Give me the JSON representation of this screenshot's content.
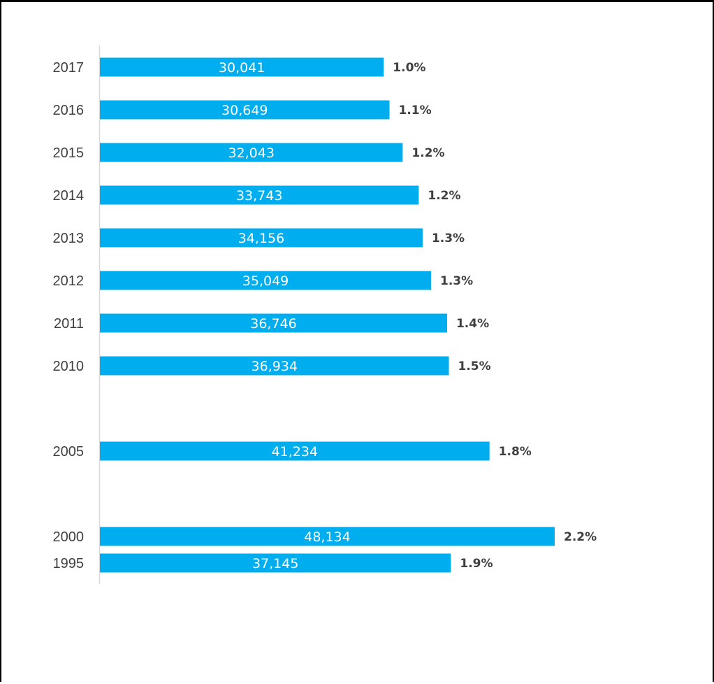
{
  "colors": {
    "bar": "#00aeef",
    "axis": "#d9d9d9",
    "label": "#404040",
    "value_label": "#ffffff"
  },
  "chart_data": {
    "type": "bar",
    "orientation": "horizontal",
    "title": "",
    "xlabel": "",
    "ylabel": "",
    "grid": false,
    "legend": "none",
    "categories": [
      "2017",
      "2016",
      "2015",
      "2014",
      "2013",
      "2012",
      "2011",
      "2010",
      "2005",
      "2000",
      "1995"
    ],
    "values": [
      30041,
      30649,
      32043,
      33743,
      34156,
      35049,
      36746,
      36934,
      41234,
      48134,
      37145
    ],
    "value_labels": [
      "30,041",
      "30,649",
      "32,043",
      "33,743",
      "34,156",
      "35,049",
      "36,746",
      "36,934",
      "41,234",
      "48,134",
      "37,145"
    ],
    "share_labels": [
      "1.0%",
      "1.1%",
      "1.2%",
      "1.2%",
      "1.3%",
      "1.3%",
      "1.4%",
      "1.5%",
      "1.8%",
      "2.2%",
      "1.9%"
    ],
    "xlim": [
      0,
      48134
    ]
  }
}
